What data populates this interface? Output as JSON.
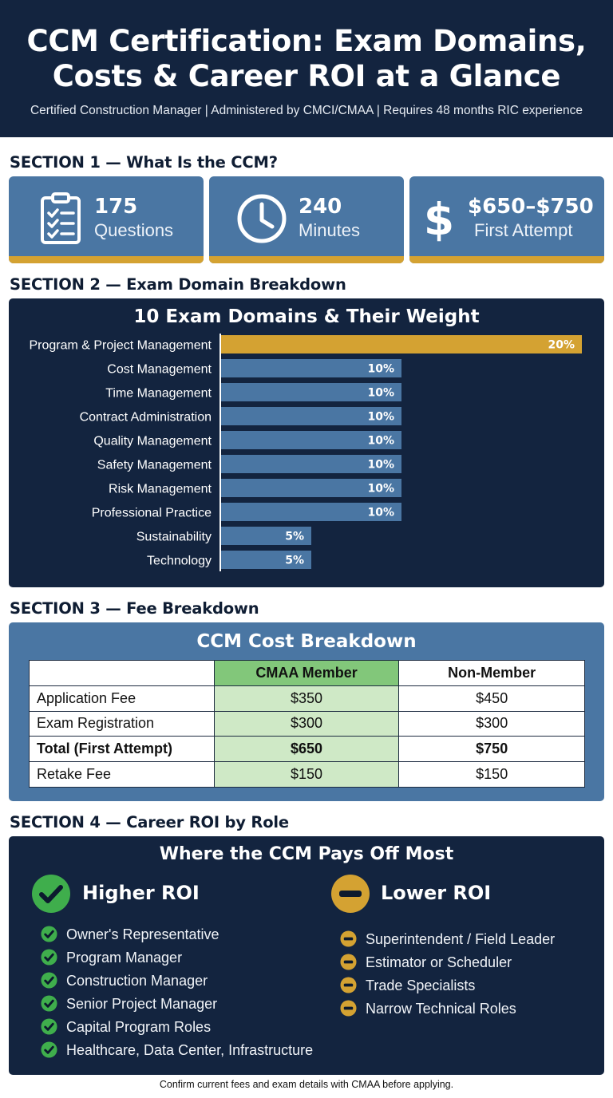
{
  "header": {
    "title_line1": "CCM Certification: Exam Domains,",
    "title_line2": "Costs & Career ROI at a Glance",
    "subtitle": "Certified Construction Manager | Administered by CMCI/CMAA | Requires 48 months RIC experience"
  },
  "section1": {
    "heading": "SECTION 1 — What Is the CCM?",
    "stats": [
      {
        "value": "175",
        "label": "Questions",
        "icon": "clipboard-checklist-icon"
      },
      {
        "value": "240",
        "label": "Minutes",
        "icon": "clock-icon"
      },
      {
        "value": "$650–$750",
        "label": "First Attempt",
        "icon": "dollar-sign-icon"
      }
    ]
  },
  "section2": {
    "heading": "SECTION 2 — Exam Domain Breakdown"
  },
  "chart_data": {
    "type": "bar",
    "orientation": "horizontal",
    "title": "10 Exam Domains & Their Weight",
    "categories": [
      "Program & Project Management",
      "Cost Management",
      "Time Management",
      "Contract Administration",
      "Quality Management",
      "Safety Management",
      "Risk Management",
      "Professional Practice",
      "Sustainability",
      "Technology"
    ],
    "values": [
      20,
      10,
      10,
      10,
      10,
      10,
      10,
      10,
      5,
      5
    ],
    "data_labels": [
      "20%",
      "10%",
      "10%",
      "10%",
      "10%",
      "10%",
      "10%",
      "10%",
      "5%",
      "5%"
    ],
    "xlim": [
      0,
      20
    ],
    "grid": false,
    "colors": {
      "highlight": "#d4a232",
      "default": "#4a76a3",
      "background": "#13243f"
    }
  },
  "section3": {
    "heading": "SECTION 3 — Fee Breakdown",
    "table_title": "CCM Cost Breakdown",
    "columns": [
      "",
      "CMAA Member",
      "Non-Member"
    ],
    "rows": [
      {
        "label": "Application Fee",
        "member": "$350",
        "non_member": "$450"
      },
      {
        "label": "Exam Registration",
        "member": "$300",
        "non_member": "$300"
      },
      {
        "label": "Total (First Attempt)",
        "member": "$650",
        "non_member": "$750"
      },
      {
        "label": "Retake Fee",
        "member": "$150",
        "non_member": "$150"
      }
    ]
  },
  "section4": {
    "heading": "SECTION 4 — Career ROI by Role",
    "panel_title": "Where the CCM Pays Off Most",
    "higher": {
      "title": "Higher ROI",
      "icon": "check-circle-icon",
      "color": "#3fae4c",
      "items": [
        "Owner's Representative",
        "Program Manager",
        "Construction Manager",
        "Senior Project Manager",
        "Capital Program Roles",
        "Healthcare, Data Center, Infrastructure"
      ]
    },
    "lower": {
      "title": "Lower ROI",
      "icon": "minus-circle-icon",
      "color": "#d4a232",
      "items": [
        "Superintendent / Field Leader",
        "Estimator or Scheduler",
        "Trade Specialists",
        "Narrow Technical Roles"
      ]
    }
  },
  "footer": {
    "note": "Confirm current fees and exam details with CMAA before applying."
  }
}
